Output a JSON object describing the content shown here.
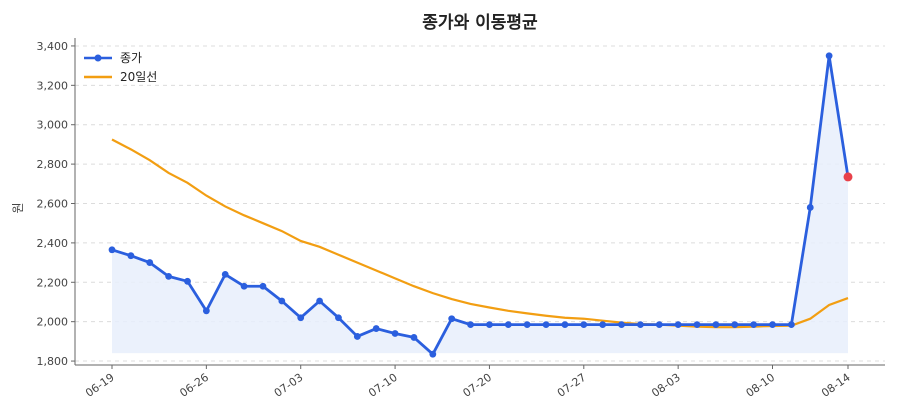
{
  "chart_data": {
    "type": "line",
    "title": "종가와 이동평균",
    "xlabel": "",
    "ylabel": "원",
    "ylim": [
      1780,
      3420
    ],
    "yticks": [
      "1,800",
      "2,000",
      "2,200",
      "2,400",
      "2,600",
      "2,800",
      "3,000",
      "3,200",
      "3,400"
    ],
    "xticks": [
      "06-19",
      "06-26",
      "07-03",
      "07-10",
      "07-20",
      "07-27",
      "08-03",
      "08-10",
      "08-14"
    ],
    "grid": true,
    "legend_position": "top-left",
    "colors": {
      "close": "#2b5fde",
      "ma20": "#f29e12",
      "fill": "#e7eefb",
      "last_point": "#e8414a"
    },
    "series": [
      {
        "name": "종가",
        "values": [
          2365,
          2335,
          2300,
          2230,
          2205,
          2055,
          2240,
          2180,
          2180,
          2105,
          2020,
          2105,
          2020,
          1925,
          1965,
          1940,
          1920,
          1835,
          2015,
          1985,
          1985,
          1985,
          1985,
          1985,
          1985,
          1985,
          1985,
          1985,
          1985,
          1985,
          1985,
          1985,
          1985,
          1985,
          1985,
          1985,
          1985,
          2580,
          3350,
          2735
        ]
      },
      {
        "name": "20일선",
        "values": [
          2925,
          2875,
          2820,
          2755,
          2705,
          2640,
          2585,
          2540,
          2500,
          2460,
          2410,
          2380,
          2340,
          2300,
          2260,
          2220,
          2180,
          2145,
          2115,
          2090,
          2072,
          2055,
          2042,
          2030,
          2020,
          2015,
          2005,
          1995,
          1988,
          1985,
          1980,
          1975,
          1972,
          1972,
          1975,
          1978,
          1980,
          2015,
          2085,
          2120
        ]
      }
    ]
  }
}
